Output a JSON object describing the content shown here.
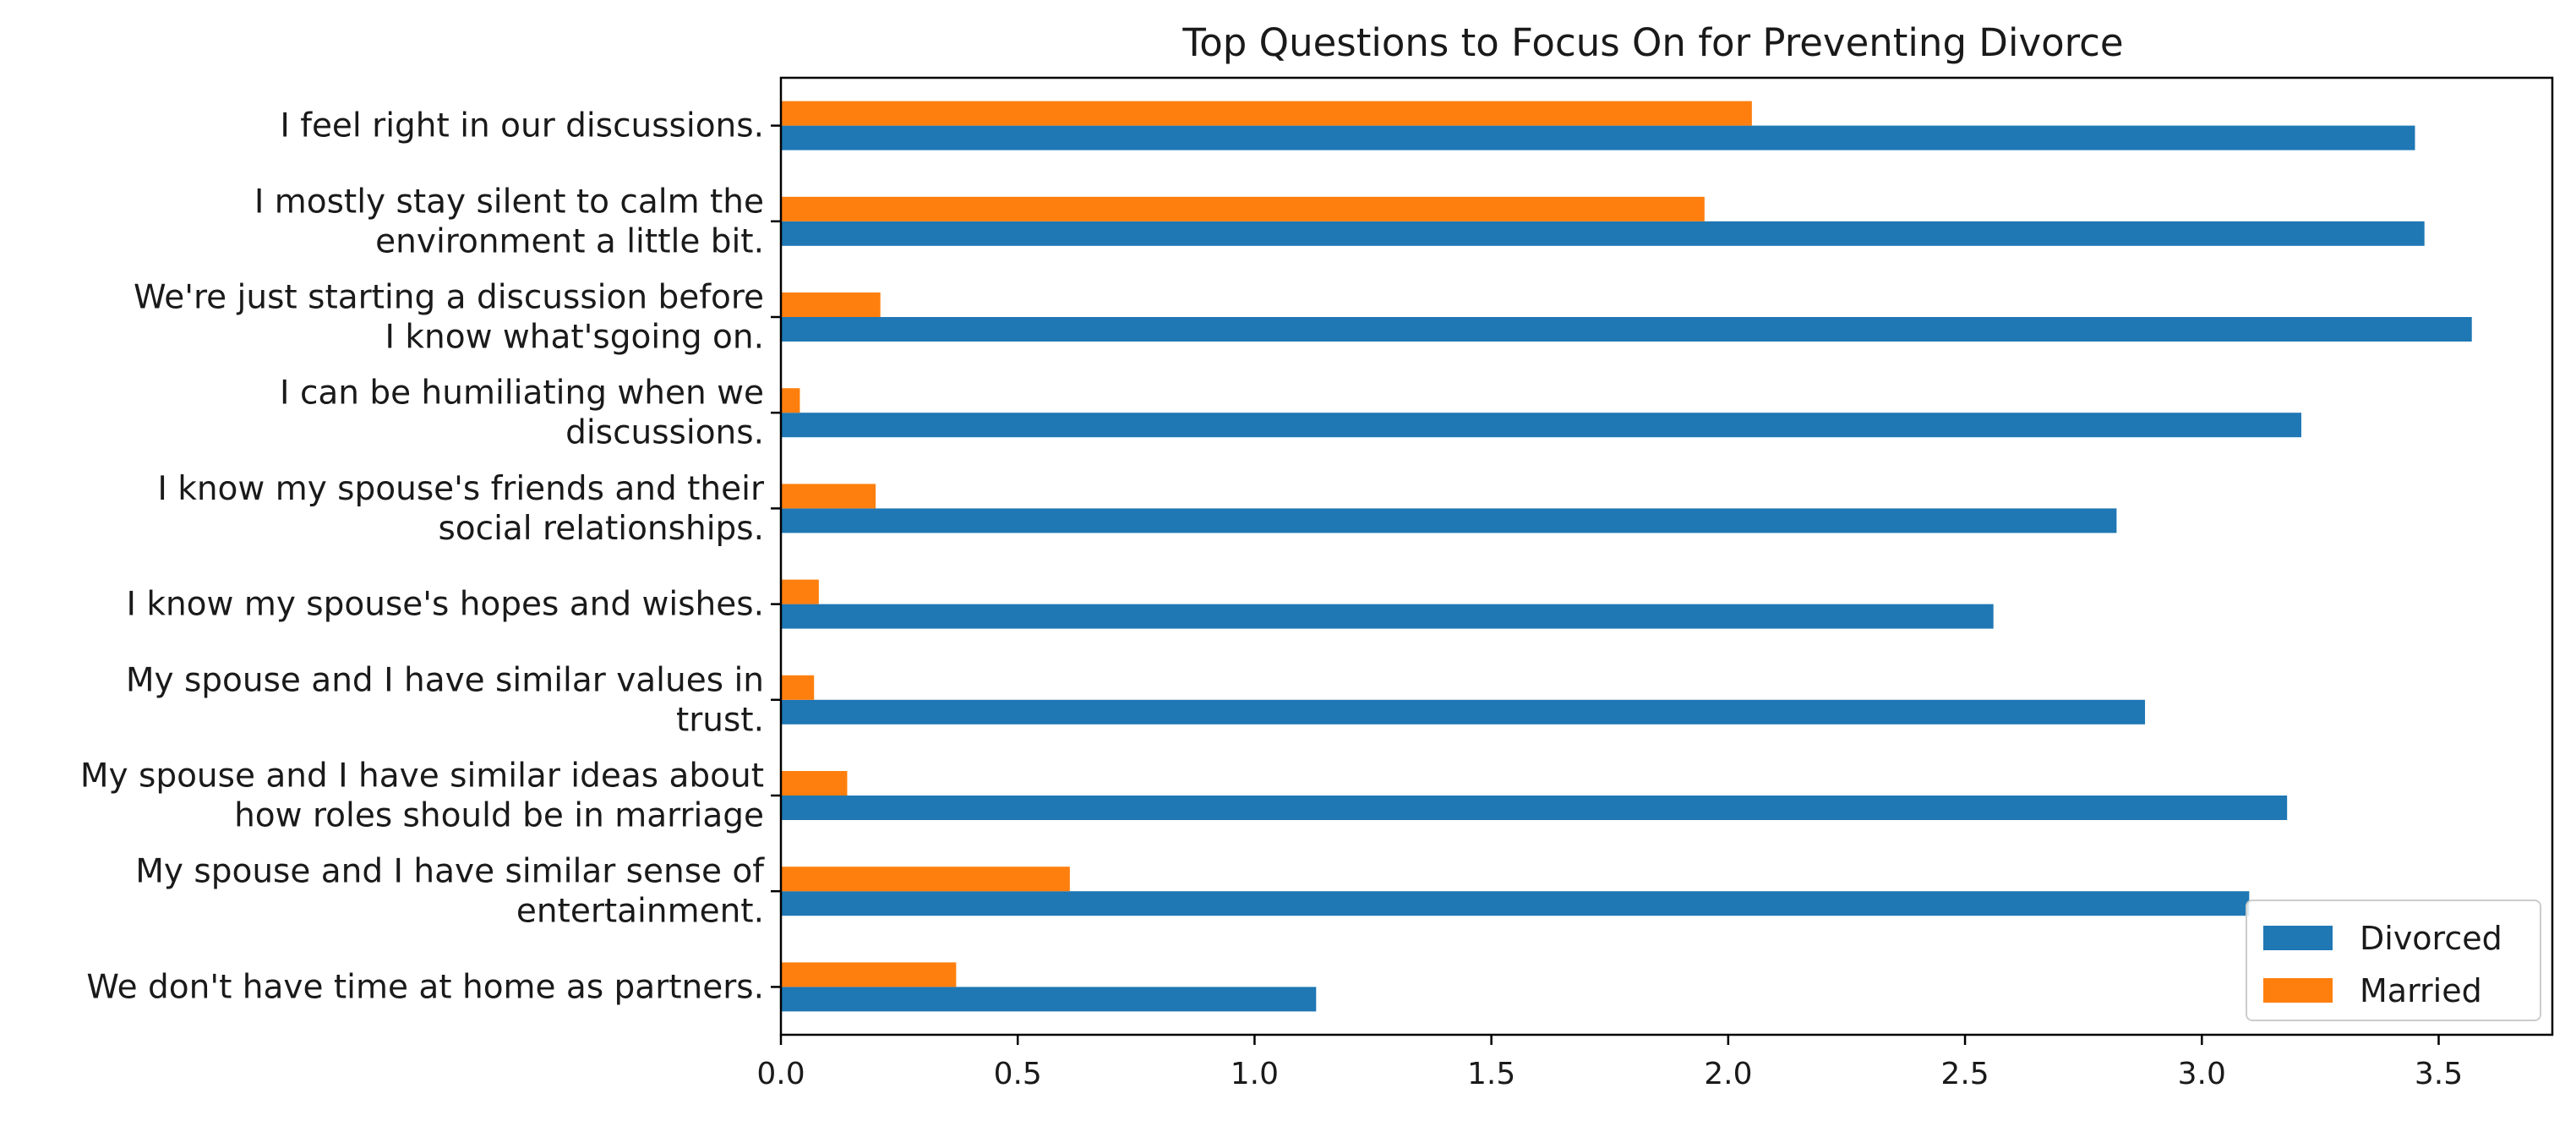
{
  "chart_data": {
    "type": "bar",
    "orientation": "horizontal",
    "title": "Top Questions to Focus On for Preventing Divorce",
    "xlabel": "",
    "ylabel": "",
    "xlim": [
      0,
      3.74
    ],
    "xticks": [
      0.0,
      0.5,
      1.0,
      1.5,
      2.0,
      2.5,
      3.0,
      3.5
    ],
    "xtick_labels": [
      "0.0",
      "0.5",
      "1.0",
      "1.5",
      "2.0",
      "2.5",
      "3.0",
      "3.5"
    ],
    "grid": false,
    "legend_position": "bottom-right",
    "categories": [
      [
        "I feel right in our discussions."
      ],
      [
        "I mostly stay silent to calm the",
        "environment a little bit."
      ],
      [
        "We're just starting a discussion before",
        "I know what'sgoing on."
      ],
      [
        "I can be humiliating when we",
        "discussions."
      ],
      [
        "I know my spouse's friends and their",
        "social relationships."
      ],
      [
        "I know my spouse's hopes and wishes."
      ],
      [
        "My spouse and I have similar values in",
        "trust."
      ],
      [
        "My spouse and I have similar ideas about",
        "how roles should be in marriage"
      ],
      [
        "My spouse and I have similar sense of",
        "entertainment."
      ],
      [
        "We don't have time at home as partners."
      ]
    ],
    "series": [
      {
        "name": "Divorced",
        "color": "#1f77b4",
        "values": [
          3.45,
          3.47,
          3.57,
          3.21,
          2.82,
          2.56,
          2.88,
          3.18,
          3.1,
          1.13
        ]
      },
      {
        "name": "Married",
        "color": "#ff7f0e",
        "values": [
          2.05,
          1.95,
          0.21,
          0.04,
          0.2,
          0.08,
          0.07,
          0.14,
          0.61,
          0.37
        ]
      }
    ]
  }
}
